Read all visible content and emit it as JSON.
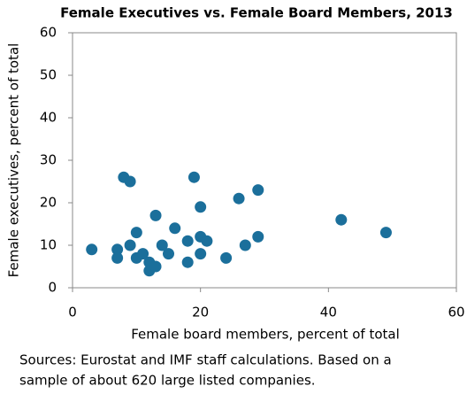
{
  "chart_data": {
    "type": "scatter",
    "title": "Female Executives vs. Female Board Members, 2013",
    "x_label": "Female board members, percent of total",
    "y_label": "Female executives, percent of total",
    "notes": [
      "Sources: Eurostat and IMF staff calculations. Based on a",
      "sample of about 620 large listed companies."
    ],
    "color": "#1b6f9b",
    "x": [
      3,
      7,
      7,
      8,
      9,
      9,
      10,
      10,
      11,
      12,
      12,
      13,
      13,
      14,
      15,
      16,
      18,
      18,
      19,
      20,
      20,
      20,
      21,
      24,
      26,
      27,
      29,
      29,
      42,
      49
    ],
    "values": [
      9,
      9,
      7,
      26,
      25,
      10,
      13,
      7,
      8,
      6,
      4,
      17,
      5,
      10,
      8,
      14,
      11,
      6,
      26,
      19,
      12,
      8,
      11,
      7,
      21,
      10,
      23,
      12,
      16,
      13
    ],
    "xlim": [
      0,
      60
    ],
    "xticks": [
      0,
      20,
      40,
      60
    ],
    "ylim": [
      0,
      60
    ],
    "yticks": [
      0,
      10,
      20,
      30,
      40,
      50,
      60
    ],
    "grid": false
  }
}
